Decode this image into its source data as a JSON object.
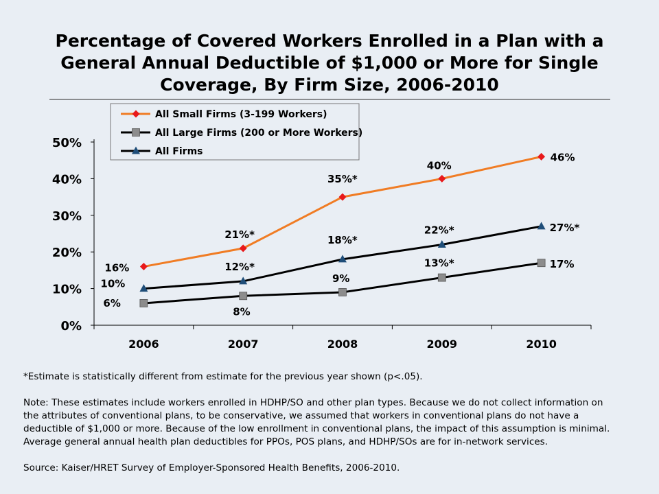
{
  "title": "Percentage of Covered Workers Enrolled in a Plan with a General Annual Deductible of $1,000 or More for Single Coverage, By Firm Size, 2006-2010",
  "chart_data": {
    "type": "line",
    "title": "Percentage of Covered Workers Enrolled in a Plan with a General Annual Deductible of $1,000 or More for Single Coverage, By Firm Size, 2006-2010",
    "categories": [
      "2006",
      "2007",
      "2008",
      "2009",
      "2010"
    ],
    "ylim": [
      0,
      50
    ],
    "yticks": [
      "0%",
      "10%",
      "20%",
      "30%",
      "40%",
      "50%"
    ],
    "ytick_values": [
      0,
      10,
      20,
      30,
      40,
      50
    ],
    "grid": false,
    "legend_position": "top-left",
    "series": [
      {
        "name": "All Small Firms (3-199 Workers)",
        "values": [
          16,
          21,
          35,
          40,
          46
        ],
        "labels": [
          "16%",
          "21%*",
          "35%*",
          "40%",
          "46%"
        ],
        "color": "#f07c24",
        "marker": "diamond",
        "marker_color": "#e8191b"
      },
      {
        "name": "All Large Firms (200 or More Workers)",
        "values": [
          6,
          8,
          9,
          13,
          17
        ],
        "labels": [
          "6%",
          "8%",
          "9%",
          "13%*",
          "17%"
        ],
        "color": "#000000",
        "marker": "square",
        "marker_color": "#8c8c8c"
      },
      {
        "name": "All Firms",
        "values": [
          10,
          12,
          18,
          22,
          27
        ],
        "labels": [
          "10%",
          "12%*",
          "18%*",
          "22%*",
          "27%*"
        ],
        "color": "#000000",
        "marker": "triangle",
        "marker_color": "#1f4e79"
      }
    ]
  },
  "notes": {
    "significance": "*Estimate is statistically different from estimate for the previous year shown (p<.05).",
    "note": "Note: These estimates include workers enrolled in HDHP/SO and other plan types.  Because  we do not collect information on the attributes of conventional plans, to be conservative, we assumed  that workers in conventional plans do not have a deductible of $1,000 or more.   Because  of the low enrollment in conventional plans, the impact of this assumption is minimal. Average general annual health plan deductibles for PPOs, POS plans, and HDHP/SOs are for in-network services.",
    "source": "Source: Kaiser/HRET Survey of Employer-Sponsored Health Benefits, 2006-2010."
  }
}
